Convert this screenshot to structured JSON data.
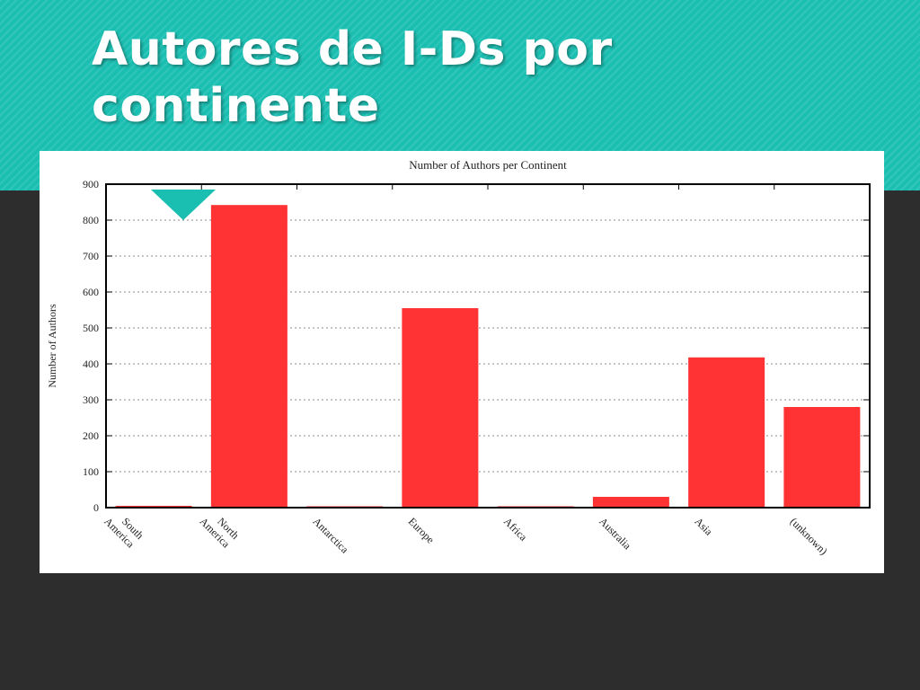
{
  "slide": {
    "title": "Autores de I-Ds por continente"
  },
  "colors": {
    "header_accent": "#1bbfb2",
    "background": "#2d2d2d",
    "bar": "#ff3333"
  },
  "chart_data": {
    "type": "bar",
    "title": "Number of Authors per Continent",
    "xlabel": "",
    "ylabel": "Number of Authors",
    "categories": [
      "South America",
      "North America",
      "Antarctica",
      "Europe",
      "Africa",
      "Australia",
      "Asia",
      "(unknown)"
    ],
    "values": [
      5,
      842,
      0,
      555,
      2,
      30,
      418,
      280
    ],
    "ylim": [
      0,
      900
    ],
    "yticks": [
      0,
      100,
      200,
      300,
      400,
      500,
      600,
      700,
      800,
      900
    ],
    "grid": true,
    "legend": "none"
  }
}
